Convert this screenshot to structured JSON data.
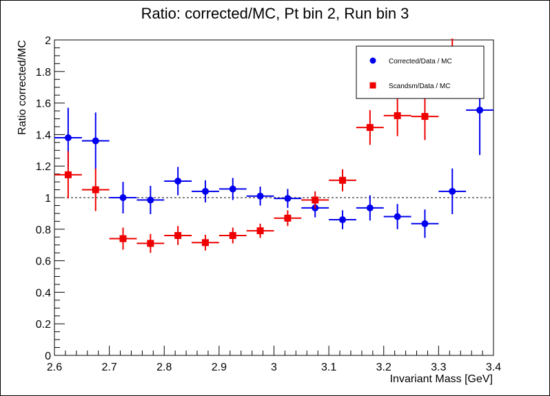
{
  "chart_data": {
    "type": "scatter",
    "title": "Ratio: corrected/MC, Pt bin 2, Run bin 3",
    "xlabel": "Invariant Mass [GeV]",
    "ylabel": "Ratio corrected/MC",
    "xlim": [
      2.6,
      3.4
    ],
    "ylim": [
      0,
      2
    ],
    "reference_line": 1,
    "x_ticks": [
      "2.6",
      "2.7",
      "2.8",
      "2.9",
      "3",
      "3.1",
      "3.2",
      "3.3",
      "3.4"
    ],
    "y_ticks": [
      "0",
      "0.2",
      "0.4",
      "0.6",
      "0.8",
      "1",
      "1.2",
      "1.4",
      "1.6",
      "1.8",
      "2"
    ],
    "legend_position": "top-right",
    "series": [
      {
        "name": "Corrected/Data / MC",
        "color": "#0000ee",
        "marker": "circle",
        "x": [
          2.625,
          2.675,
          2.725,
          2.775,
          2.825,
          2.875,
          2.925,
          2.975,
          3.025,
          3.075,
          3.125,
          3.175,
          3.225,
          3.275,
          3.325,
          3.375
        ],
        "y": [
          1.38,
          1.36,
          1.0,
          0.985,
          1.105,
          1.04,
          1.055,
          1.01,
          0.995,
          0.935,
          0.86,
          0.935,
          0.88,
          0.835,
          1.04,
          1.555
        ],
        "yerr": [
          0.19,
          0.18,
          0.1,
          0.09,
          0.09,
          0.07,
          0.07,
          0.06,
          0.06,
          0.06,
          0.06,
          0.08,
          0.08,
          0.09,
          0.145,
          0.285
        ]
      },
      {
        "name": "Scandsm/Data / MC",
        "color": "#ee0000",
        "marker": "square",
        "x": [
          2.625,
          2.675,
          2.725,
          2.775,
          2.825,
          2.875,
          2.925,
          2.975,
          3.025,
          3.075,
          3.125,
          3.175,
          3.225,
          3.275,
          3.325
        ],
        "y": [
          1.145,
          1.05,
          0.74,
          0.71,
          0.76,
          0.715,
          0.76,
          0.79,
          0.87,
          0.985,
          1.11,
          1.445,
          1.52,
          1.515,
          2.03
        ],
        "yerr": [
          0.15,
          0.135,
          0.07,
          0.06,
          0.06,
          0.05,
          0.05,
          0.045,
          0.05,
          0.055,
          0.07,
          0.11,
          0.13,
          0.15,
          0.2
        ]
      }
    ]
  }
}
